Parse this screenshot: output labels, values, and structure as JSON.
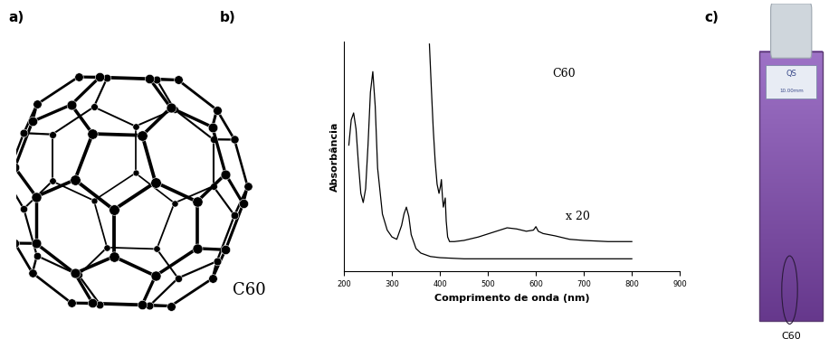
{
  "panel_labels": [
    "a)",
    "b)",
    "c)"
  ],
  "molecule": {
    "label": "C60"
  },
  "chart_data": {
    "type": "line",
    "x_label": "Comprimento de onda (nm)",
    "y_label": "Absorbância",
    "annotations": [
      "C60",
      "x 20"
    ],
    "color": "#000000",
    "xlim": [
      200,
      900
    ],
    "xticks": [
      200,
      300,
      400,
      500,
      600,
      700,
      800,
      900
    ],
    "ylim": [
      0,
      1
    ],
    "yticks": [],
    "tick_labels": "x",
    "series": [
      {
        "color": "#000000",
        "x": [
          210,
          215,
          220,
          225,
          230,
          235,
          240,
          245,
          250,
          255,
          260,
          265,
          270,
          280,
          290,
          300,
          310,
          320,
          325,
          330,
          335,
          340,
          350,
          360,
          380,
          400,
          450,
          500,
          600,
          700,
          800
        ],
        "values": [
          0.55,
          0.66,
          0.69,
          0.62,
          0.47,
          0.34,
          0.3,
          0.36,
          0.55,
          0.78,
          0.87,
          0.72,
          0.45,
          0.25,
          0.18,
          0.15,
          0.14,
          0.2,
          0.25,
          0.28,
          0.24,
          0.16,
          0.1,
          0.08,
          0.065,
          0.06,
          0.055,
          0.055,
          0.055,
          0.055,
          0.055
        ]
      },
      {
        "color": "#000000",
        "x": [
          378,
          382,
          386,
          390,
          394,
          398,
          401,
          403,
          405,
          407,
          409,
          411,
          413,
          416,
          420,
          430,
          450,
          480,
          510,
          540,
          560,
          580,
          595,
          600,
          605,
          615,
          640,
          670,
          700,
          750,
          800
        ],
        "values": [
          0.99,
          0.8,
          0.62,
          0.48,
          0.38,
          0.34,
          0.37,
          0.4,
          0.33,
          0.28,
          0.3,
          0.32,
          0.22,
          0.15,
          0.13,
          0.13,
          0.135,
          0.15,
          0.17,
          0.19,
          0.185,
          0.175,
          0.18,
          0.195,
          0.175,
          0.165,
          0.155,
          0.14,
          0.135,
          0.13,
          0.13
        ]
      }
    ]
  },
  "photo": {
    "cuvette_text": [
      "QS",
      "10.00mm"
    ],
    "label": "C60"
  }
}
